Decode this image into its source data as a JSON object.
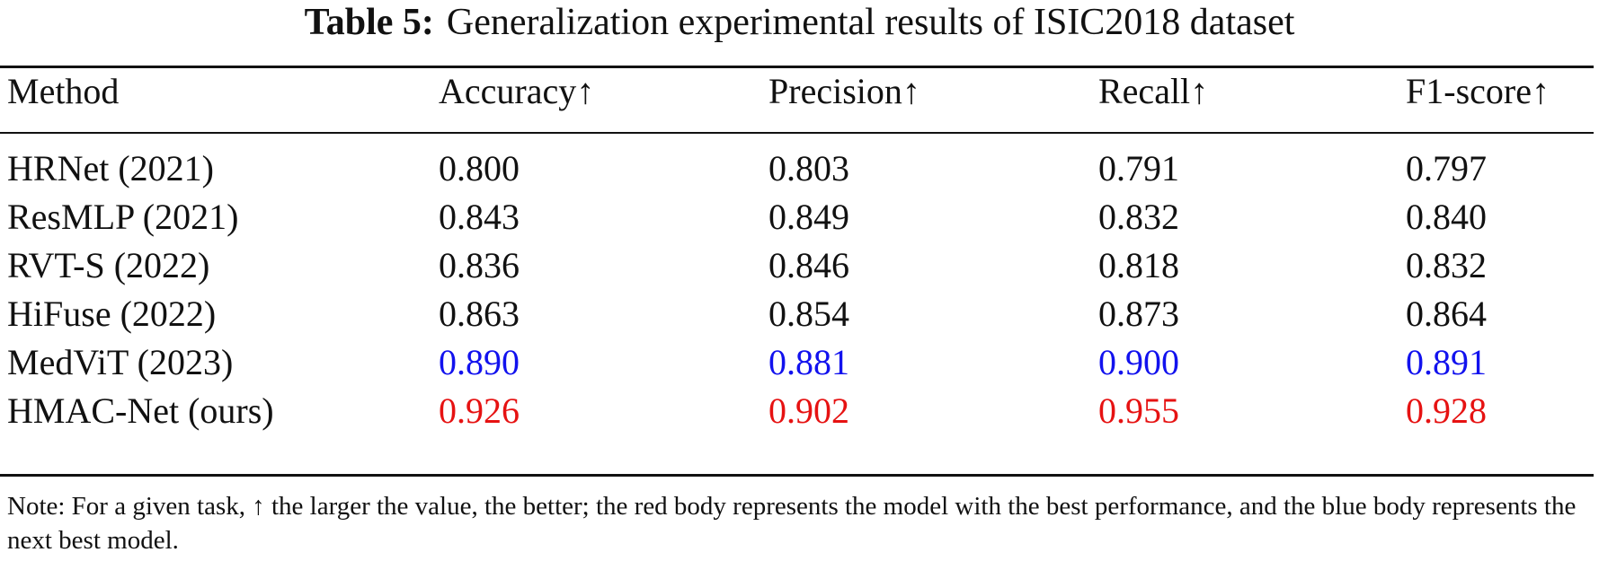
{
  "caption": {
    "label": "Table 5:",
    "title": "Generalization experimental results of ISIC2018 dataset"
  },
  "table": {
    "headers": [
      "Method",
      "Accuracy↑",
      "Precision↑",
      "Recall↑",
      "F1-score↑"
    ],
    "rows": [
      [
        "HRNet (2021)",
        "0.800",
        "0.803",
        "0.791",
        "0.797"
      ],
      [
        "ResMLP (2021)",
        "0.843",
        "0.849",
        "0.832",
        "0.840"
      ],
      [
        "RVT-S (2022)",
        "0.836",
        "0.846",
        "0.818",
        "0.832"
      ],
      [
        "HiFuse (2022)",
        "0.863",
        "0.854",
        "0.873",
        "0.864"
      ],
      [
        "MedViT (2023)",
        "0.890",
        "0.881",
        "0.900",
        "0.891"
      ],
      [
        "HMAC-Net (ours)",
        "0.926",
        "0.902",
        "0.955",
        "0.928"
      ]
    ],
    "highlight_colors": {
      "best": "#e61212",
      "second_best": "#1212ee"
    }
  },
  "note": "Note: For a given task, ↑ the larger the value, the better; the red body represents the model with the best performance, and the blue body represents the next best model."
}
